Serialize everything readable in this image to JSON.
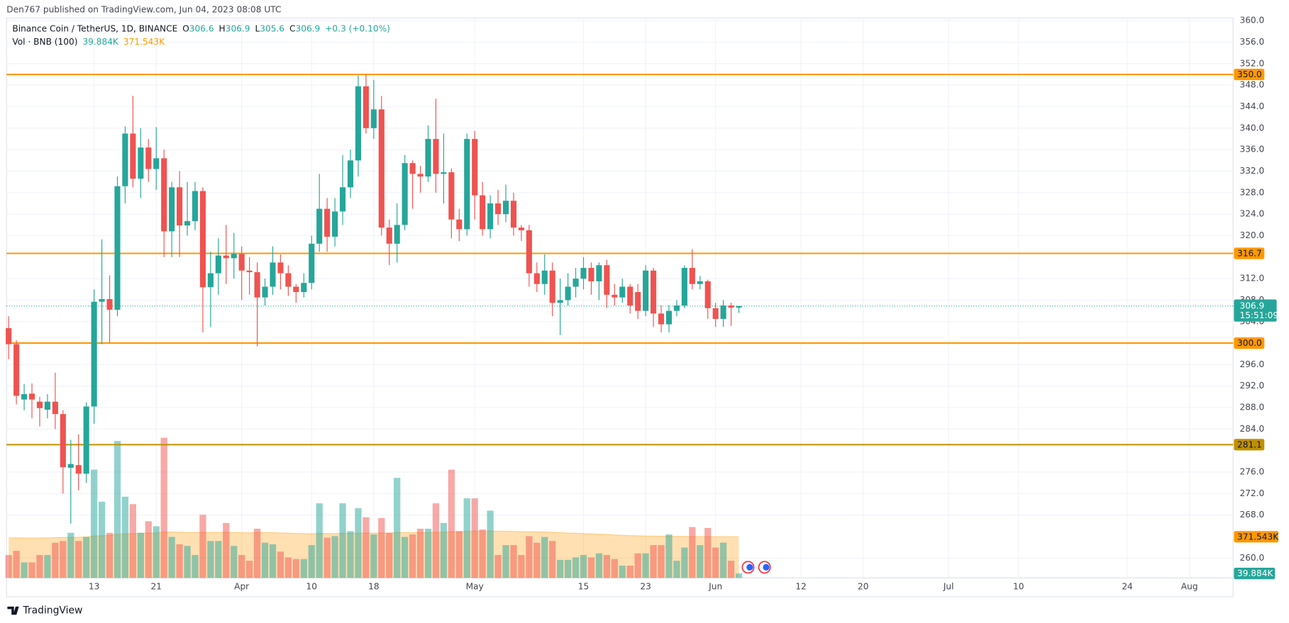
{
  "header": {
    "published": "Den767 published on TradingView.com, Jun 04, 2023 08:08 UTC"
  },
  "footer": {
    "brand": "TradingView"
  },
  "chart_data": {
    "type": "candlestick",
    "legend": {
      "symbol": "Binance Coin / TetherUS, 1D, BINANCE",
      "fields": [
        {
          "key": "O",
          "value": "306.6"
        },
        {
          "key": "H",
          "value": "306.9"
        },
        {
          "key": "L",
          "value": "305.6"
        },
        {
          "key": "C",
          "value": "306.9"
        }
      ],
      "change": "+0.3 (+0.10%)"
    },
    "up_color": "#26a69a",
    "down_color": "#ef5350",
    "x": [
      "2023-03-02",
      "2023-03-03",
      "2023-03-04",
      "2023-03-05",
      "2023-03-06",
      "2023-03-07",
      "2023-03-08",
      "2023-03-09",
      "2023-03-10",
      "2023-03-11",
      "2023-03-12",
      "2023-03-13",
      "2023-03-14",
      "2023-03-15",
      "2023-03-16",
      "2023-03-17",
      "2023-03-18",
      "2023-03-19",
      "2023-03-20",
      "2023-03-21",
      "2023-03-22",
      "2023-03-23",
      "2023-03-24",
      "2023-03-25",
      "2023-03-26",
      "2023-03-27",
      "2023-03-28",
      "2023-03-29",
      "2023-03-30",
      "2023-03-31",
      "2023-04-01",
      "2023-04-02",
      "2023-04-03",
      "2023-04-04",
      "2023-04-05",
      "2023-04-06",
      "2023-04-07",
      "2023-04-08",
      "2023-04-09",
      "2023-04-10",
      "2023-04-11",
      "2023-04-12",
      "2023-04-13",
      "2023-04-14",
      "2023-04-15",
      "2023-04-16",
      "2023-04-17",
      "2023-04-18",
      "2023-04-19",
      "2023-04-20",
      "2023-04-21",
      "2023-04-22",
      "2023-04-23",
      "2023-04-24",
      "2023-04-25",
      "2023-04-26",
      "2023-04-27",
      "2023-04-28",
      "2023-04-29",
      "2023-04-30",
      "2023-05-01",
      "2023-05-02",
      "2023-05-03",
      "2023-05-04",
      "2023-05-05",
      "2023-05-06",
      "2023-05-07",
      "2023-05-08",
      "2023-05-09",
      "2023-05-10",
      "2023-05-11",
      "2023-05-12",
      "2023-05-13",
      "2023-05-14",
      "2023-05-15",
      "2023-05-16",
      "2023-05-17",
      "2023-05-18",
      "2023-05-19",
      "2023-05-20",
      "2023-05-21",
      "2023-05-22",
      "2023-05-23",
      "2023-05-24",
      "2023-05-25",
      "2023-05-26",
      "2023-05-27",
      "2023-05-28",
      "2023-05-29",
      "2023-05-30",
      "2023-05-31",
      "2023-06-01",
      "2023-06-02",
      "2023-06-03",
      "2023-06-04"
    ],
    "open": [
      302.8,
      299.8,
      289.5,
      290.6,
      289.1,
      287.6,
      289.1,
      286.8,
      276.8,
      277.3,
      275.7,
      288.2,
      307.7,
      308.2,
      306.2,
      329.2,
      339,
      330.6,
      336.4,
      332.4,
      334.4,
      320.8,
      329,
      321.9,
      322.7,
      328.3,
      310.4,
      313,
      316.3,
      315.8,
      316.6,
      313.5,
      313.2,
      308.5,
      310.5,
      315,
      313,
      310.5,
      309.5,
      311.2,
      318.5,
      325,
      319.8,
      324.5,
      329,
      334,
      347.8,
      340,
      343.5,
      321.5,
      318.5,
      322,
      333.5,
      331.5,
      331,
      338,
      331.5,
      331.8,
      323,
      321.2,
      338,
      327.5,
      321.2,
      326,
      324,
      326.5,
      321.5,
      321,
      313,
      311,
      313.5,
      307.5,
      308,
      310.5,
      312,
      314,
      311.5,
      314.5,
      309,
      308.5,
      310.5,
      309.5,
      306,
      313.5,
      305.5,
      303.5,
      306,
      307,
      314,
      311,
      311.5,
      306.5,
      304.5,
      307,
      306.6
    ],
    "high": [
      305,
      300.5,
      292.4,
      292.5,
      290,
      290.5,
      294.5,
      287.5,
      282,
      283,
      289,
      310,
      319.3,
      312.6,
      331,
      340.3,
      346,
      340,
      338,
      340.2,
      336,
      330,
      332,
      330,
      330,
      329,
      317,
      319.5,
      322,
      320.5,
      318,
      316,
      315,
      312,
      318,
      316.5,
      314.5,
      311,
      313,
      320,
      331.5,
      327,
      327,
      335,
      336,
      349.8,
      350,
      349,
      346,
      323,
      326,
      335,
      334,
      333,
      340.5,
      345.5,
      339,
      332.5,
      325,
      339,
      339.5,
      330,
      327.5,
      328.5,
      329.5,
      328,
      322,
      322,
      315,
      316.5,
      315,
      312,
      313,
      314,
      316,
      315,
      315,
      315.5,
      311,
      312,
      311,
      311,
      314.5,
      314,
      307,
      307,
      308,
      314.5,
      317.5,
      312.5,
      311.8,
      307.5,
      308,
      307.5,
      306.9
    ],
    "low": [
      297,
      288.6,
      287.5,
      286,
      284.5,
      286,
      284,
      272,
      266.4,
      272.6,
      274,
      285,
      299.8,
      300,
      305,
      326,
      329,
      327,
      330,
      328.5,
      316,
      316,
      316,
      320,
      321,
      302,
      303,
      309,
      311,
      312,
      308,
      309,
      299.4,
      307,
      309,
      310,
      308.8,
      307.5,
      308.5,
      310,
      317,
      317,
      318,
      322,
      327,
      331,
      339,
      338,
      320,
      314.5,
      315,
      321,
      325,
      328,
      330,
      328,
      326,
      319.5,
      319,
      320,
      323,
      320,
      319.5,
      322,
      322.5,
      320,
      319,
      310.5,
      309.5,
      309,
      305,
      301.5,
      307,
      308.5,
      310,
      309,
      308,
      306.5,
      307,
      307.5,
      305.5,
      304.5,
      305,
      303,
      302,
      302,
      305,
      306.5,
      310,
      310,
      304.5,
      303,
      303,
      303.2,
      305.6
    ],
    "close": [
      299.8,
      290.2,
      290.5,
      289.5,
      287.9,
      289.1,
      286.8,
      276.9,
      277.5,
      275.7,
      288.2,
      307.7,
      308.2,
      306.2,
      329.2,
      339,
      330.6,
      336.4,
      332.4,
      334.4,
      320.8,
      329,
      321.9,
      322.7,
      328.3,
      310.4,
      313,
      316.3,
      315.8,
      316.6,
      313.5,
      313.2,
      308.5,
      310.5,
      315,
      313,
      310.5,
      309.5,
      311.2,
      318.5,
      325,
      319.8,
      324.5,
      329,
      334,
      347.8,
      340,
      343.5,
      321.5,
      318.5,
      322,
      333.5,
      331.5,
      331,
      338,
      331.5,
      331.8,
      323,
      321.2,
      338,
      327.5,
      321.2,
      326,
      324,
      326.5,
      321.5,
      321,
      313,
      311,
      313.5,
      307.5,
      308,
      310.5,
      312,
      314,
      311.5,
      314.5,
      309,
      308.5,
      310.5,
      307,
      306,
      313.5,
      305.5,
      303.5,
      306,
      307,
      314,
      311,
      311.5,
      306.5,
      304.5,
      307,
      306.6,
      306.9
    ],
    "ylim": [
      256.3,
      360.5
    ],
    "yticks": [
      {
        "value": 260,
        "label": "260.0"
      },
      {
        "value": 268,
        "label": "268.0"
      },
      {
        "value": 272,
        "label": "272.0"
      },
      {
        "value": 276,
        "label": "276.0"
      },
      {
        "value": 284,
        "label": "284.0"
      },
      {
        "value": 288,
        "label": "288.0"
      },
      {
        "value": 292,
        "label": "292.0"
      },
      {
        "value": 296,
        "label": "296.0"
      },
      {
        "value": 304,
        "label": "304.0"
      },
      {
        "value": 308,
        "label": "308.0"
      },
      {
        "value": 312,
        "label": "312.0"
      },
      {
        "value": 320,
        "label": "320.0"
      },
      {
        "value": 324,
        "label": "324.0"
      },
      {
        "value": 328,
        "label": "328.0"
      },
      {
        "value": 332,
        "label": "332.0"
      },
      {
        "value": 336,
        "label": "336.0"
      },
      {
        "value": 340,
        "label": "340.0"
      },
      {
        "value": 344,
        "label": "344.0"
      },
      {
        "value": 348,
        "label": "348.0"
      },
      {
        "value": 352,
        "label": "352.0"
      },
      {
        "value": 356,
        "label": "356.0"
      },
      {
        "value": 360,
        "label": "360.0"
      }
    ],
    "xticks": [
      {
        "value": "2023-03-13",
        "label": "13"
      },
      {
        "value": "2023-03-21",
        "label": "21"
      },
      {
        "value": "2023-04-01",
        "label": "Apr"
      },
      {
        "value": "2023-04-10",
        "label": "10"
      },
      {
        "value": "2023-04-18",
        "label": "18"
      },
      {
        "value": "2023-05-01",
        "label": "May"
      },
      {
        "value": "2023-05-15",
        "label": "15"
      },
      {
        "value": "2023-05-23",
        "label": "23"
      },
      {
        "value": "2023-06-01",
        "label": "Jun"
      },
      {
        "value": "2023-06-12",
        "label": "12"
      },
      {
        "value": "2023-06-20",
        "label": "20"
      },
      {
        "value": "2023-07-01",
        "label": "Jul"
      },
      {
        "value": "2023-07-10",
        "label": "10"
      },
      {
        "value": "2023-07-24",
        "label": "24"
      },
      {
        "value": "2023-08-01",
        "label": "Aug"
      }
    ],
    "grid": true,
    "levels": [
      {
        "value": 350,
        "label": "350.0",
        "color": "#ff9800"
      },
      {
        "value": 316.7,
        "label": "316.7",
        "color": "#ff9800"
      },
      {
        "value": 300,
        "label": "300.0",
        "color": "#ff9800"
      },
      {
        "value": 281.1,
        "label": "281.1",
        "color": "#bf9000"
      }
    ],
    "last_price": {
      "value": 306.9,
      "label": "306.9",
      "countdown": "15:51:09",
      "color": "#26a69a"
    },
    "volume": {
      "name": "Vol · BNB (100)",
      "ylim": [
        0,
        2530000
      ],
      "up_color": "rgba(38,166,154,0.5)",
      "down_color": "rgba(239,83,80,0.5)",
      "ma_color": "#ff9800",
      "values": [
        207000,
        244000,
        140000,
        140000,
        207000,
        207000,
        318000,
        333000,
        407000,
        333000,
        370000,
        977000,
        688000,
        407000,
        1236000,
        733000,
        666000,
        407000,
        511000,
        466000,
        1265000,
        370000,
        303000,
        289000,
        207000,
        570000,
        333000,
        333000,
        496000,
        289000,
        207000,
        155000,
        444000,
        318000,
        303000,
        237000,
        185000,
        170000,
        170000,
        296000,
        673000,
        363000,
        377000,
        673000,
        422000,
        629000,
        548000,
        392000,
        540000,
        407000,
        903000,
        370000,
        392000,
        444000,
        444000,
        673000,
        496000,
        977000,
        422000,
        718000,
        718000,
        437000,
        607000,
        207000,
        296000,
        296000,
        207000,
        377000,
        318000,
        370000,
        333000,
        163000,
        163000,
        185000,
        207000,
        185000,
        222000,
        207000,
        170000,
        111000,
        111000,
        222000,
        222000,
        296000,
        296000,
        392000,
        155000,
        274000,
        459000,
        296000,
        451000,
        274000,
        318000,
        155000,
        39884
      ],
      "last_label": "39.884K",
      "ma_values": [
        360000,
        362000,
        361000,
        360000,
        361000,
        362000,
        363000,
        365000,
        366000,
        368000,
        370000,
        378000,
        382000,
        384000,
        394000,
        398000,
        400000,
        403000,
        404000,
        406000,
        415000,
        414000,
        412000,
        410000,
        409000,
        412000,
        411000,
        410000,
        412000,
        410000,
        408000,
        407000,
        410000,
        409000,
        408000,
        406000,
        404000,
        402000,
        400000,
        399000,
        402000,
        401000,
        400000,
        403000,
        402000,
        404000,
        405000,
        404000,
        405000,
        404000,
        410000,
        409000,
        408000,
        409000,
        409000,
        412000,
        412000,
        418000,
        417000,
        420000,
        423000,
        422000,
        424000,
        422000,
        421000,
        420000,
        418000,
        418000,
        416000,
        414000,
        412000,
        408000,
        405000,
        403000,
        400000,
        398000,
        395000,
        392000,
        388000,
        385000,
        382000,
        380000,
        378000,
        377000,
        376000,
        375000,
        374000,
        374000,
        373000,
        373000,
        372000,
        372000,
        372000,
        371800,
        371543
      ],
      "ma_last_label": "371.543K"
    }
  }
}
